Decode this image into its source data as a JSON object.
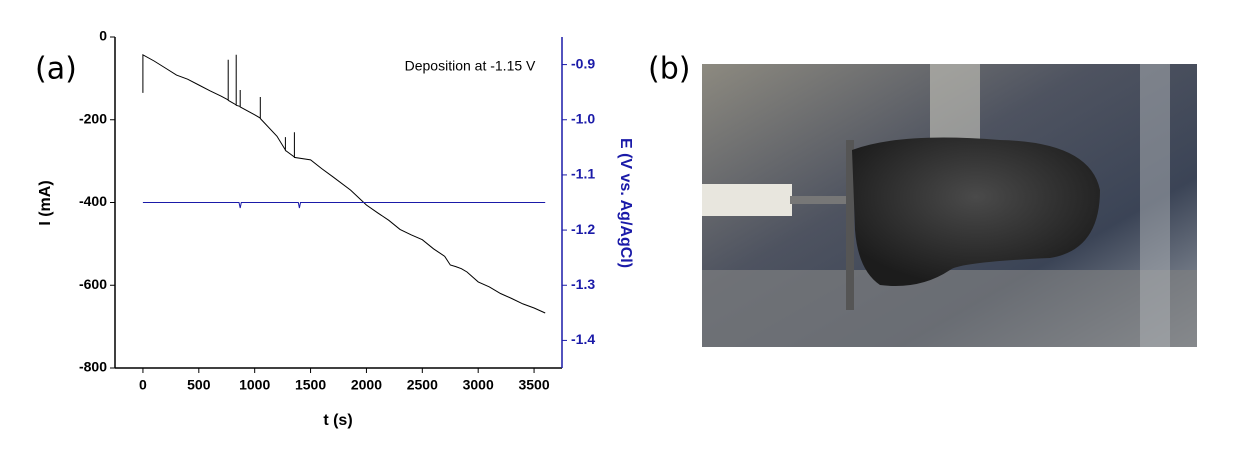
{
  "panel_labels": [
    "(a)",
    "(b)"
  ],
  "chart_data": {
    "type": "line",
    "annotation": "Deposition at -1.15 V",
    "x_label": "t (s)",
    "y_label": "I (mA)",
    "y2_label": "E (V vs. Ag/AgCl)",
    "xlim": [
      -250,
      3750
    ],
    "xticks": [
      0,
      500,
      1000,
      1500,
      2000,
      2500,
      3000,
      3500
    ],
    "ylim": [
      -800,
      0
    ],
    "yticks": [
      0,
      -200,
      -400,
      -600,
      -800
    ],
    "y2lim": [
      -1.45,
      -0.85
    ],
    "y2ticks": [
      -0.9,
      {
        "value": -1,
        "label": "-1.0"
      },
      -1.1,
      -1.2,
      -1.3,
      -1.4
    ],
    "y2color": "#1a1aa8",
    "series": [
      {
        "color": "#000000",
        "x": [
          0,
          0,
          0,
          100,
          200,
          300,
          400,
          500,
          600,
          700,
          763,
          763,
          763,
          835,
          835,
          835,
          870,
          870,
          870,
          1000,
          1050,
          1050,
          1050,
          1200,
          1275,
          1275,
          1275,
          1355,
          1355,
          1355,
          1500,
          1600,
          1700,
          1858,
          2000,
          2100,
          2200,
          2300,
          2400,
          2500,
          2600,
          2700,
          2750,
          2800,
          2850,
          2900,
          3000,
          3100,
          3200,
          3300,
          3400,
          3500,
          3600
        ],
        "values": [
          -135,
          -43,
          -43,
          -58,
          -75,
          -92,
          -102,
          -116,
          -130,
          -143,
          -152,
          -55,
          -153,
          -164,
          -43,
          -165,
          -168,
          -128,
          -169,
          -188,
          -196,
          -145,
          -197,
          -240,
          -273,
          -242,
          -274,
          -290,
          -230,
          -291,
          -297,
          -318,
          -338,
          -370,
          -406,
          -425,
          -443,
          -465,
          -478,
          -490,
          -512,
          -530,
          -551,
          -555,
          -560,
          -568,
          -592,
          -604,
          -620,
          -632,
          -645,
          -655,
          -667
        ]
      },
      {
        "color": "#1a1aa8",
        "axis": "y2",
        "x": [
          0,
          860,
          870,
          880,
          1390,
          1400,
          1410,
          3600
        ],
        "values": [
          -1.15,
          -1.15,
          -1.16,
          -1.15,
          -1.15,
          -1.16,
          -1.15,
          -1.15
        ]
      }
    ]
  }
}
